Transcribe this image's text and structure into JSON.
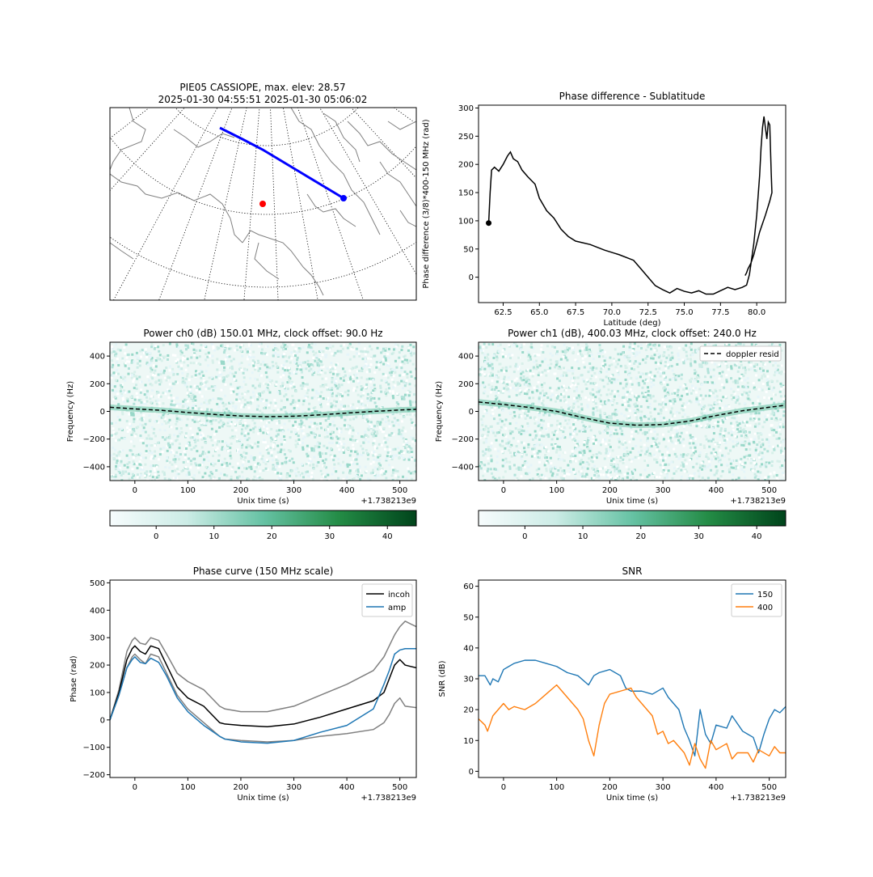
{
  "chart_data": [
    {
      "type": "map",
      "title_line1": "PIE05 CASSIOPE, max. elev: 28.57",
      "title_line2": "2025-01-30 04:55:51 2025-01-30 05:06:02",
      "colors": {
        "track": "#0000ff",
        "station": "#ff0000",
        "coast": "#808080",
        "grid": "#000000"
      }
    },
    {
      "type": "line",
      "title": "Phase difference - Sublatitude",
      "xlabel": "Latitude (deg)",
      "ylabel": "Phase difference (3/8)*400-150 MHz (rad)",
      "xlim": [
        60.8,
        82.0
      ],
      "ylim": [
        -45,
        305
      ],
      "xticks": [
        "62.5",
        "65.0",
        "67.5",
        "70.0",
        "72.5",
        "75.0",
        "77.5",
        "80.0"
      ],
      "yticks": [
        "0",
        "50",
        "100",
        "150",
        "200",
        "250",
        "300"
      ],
      "start_marker": {
        "x": 61.5,
        "y": 96
      },
      "series": [
        {
          "color": "#000000",
          "points": [
            [
              61.5,
              96
            ],
            [
              61.6,
              150
            ],
            [
              61.7,
              190
            ],
            [
              61.9,
              195
            ],
            [
              62.2,
              188
            ],
            [
              62.5,
              200
            ],
            [
              62.8,
              215
            ],
            [
              63.0,
              222
            ],
            [
              63.2,
              210
            ],
            [
              63.5,
              205
            ],
            [
              63.8,
              190
            ],
            [
              64.2,
              178
            ],
            [
              64.7,
              165
            ],
            [
              65.0,
              140
            ],
            [
              65.5,
              118
            ],
            [
              66.0,
              105
            ],
            [
              66.5,
              85
            ],
            [
              67.0,
              72
            ],
            [
              67.5,
              64
            ],
            [
              68.5,
              58
            ],
            [
              69.5,
              48
            ],
            [
              70.5,
              40
            ],
            [
              71.5,
              30
            ],
            [
              72.0,
              15
            ],
            [
              72.5,
              0
            ],
            [
              73.0,
              -15
            ],
            [
              73.5,
              -22
            ],
            [
              74.0,
              -28
            ],
            [
              74.5,
              -20
            ],
            [
              75.0,
              -25
            ],
            [
              75.5,
              -28
            ],
            [
              76.0,
              -24
            ],
            [
              76.5,
              -30
            ],
            [
              77.0,
              -30
            ],
            [
              77.5,
              -24
            ],
            [
              78.0,
              -18
            ],
            [
              78.5,
              -22
            ],
            [
              79.0,
              -18
            ],
            [
              79.3,
              -14
            ],
            [
              79.5,
              5
            ],
            [
              79.8,
              60
            ],
            [
              80.0,
              110
            ],
            [
              80.2,
              180
            ],
            [
              80.3,
              230
            ],
            [
              80.4,
              265
            ],
            [
              80.5,
              285
            ],
            [
              80.6,
              265
            ],
            [
              80.7,
              245
            ],
            [
              80.8,
              275
            ],
            [
              80.9,
              270
            ],
            [
              81.0,
              185
            ],
            [
              81.05,
              150
            ],
            [
              80.9,
              135
            ],
            [
              80.6,
              110
            ],
            [
              80.4,
              95
            ],
            [
              80.2,
              80
            ],
            [
              80.0,
              60
            ],
            [
              79.8,
              40
            ],
            [
              79.6,
              25
            ],
            [
              79.4,
              15
            ],
            [
              79.3,
              8
            ],
            [
              79.2,
              3
            ]
          ]
        }
      ]
    },
    {
      "type": "heatmap",
      "title": "Power ch0 (dB) 150.01 MHz, clock offset: 90.0 Hz",
      "xlabel": "Unix time (s)",
      "ylabel": "Frequency (Hz)",
      "offset_text": "+1.738213e9",
      "xlim": [
        -47,
        531
      ],
      "ylim": [
        -500,
        500
      ],
      "xticks": [
        "0",
        "100",
        "200",
        "300",
        "400",
        "500"
      ],
      "yticks": [
        "400",
        "200",
        "0",
        "−200",
        "−400"
      ],
      "colorbar_ticks": [
        "0",
        "10",
        "20",
        "30",
        "40"
      ],
      "colorbar_range": [
        -8,
        45
      ],
      "doppler_resid": {
        "x": [
          -47,
          0,
          50,
          100,
          150,
          200,
          250,
          300,
          350,
          400,
          450,
          500,
          531
        ],
        "y": [
          30,
          18,
          8,
          -8,
          -22,
          -33,
          -38,
          -35,
          -25,
          -12,
          0,
          10,
          15
        ]
      }
    },
    {
      "type": "heatmap",
      "title": "Power ch1 (dB), 400.03 MHz, clock offset: 240.0 Hz",
      "xlabel": "Unix time (s)",
      "ylabel": "Frequency (Hz)",
      "offset_text": "+1.738213e9",
      "xlim": [
        -47,
        531
      ],
      "ylim": [
        -500,
        500
      ],
      "xticks": [
        "0",
        "100",
        "200",
        "300",
        "400",
        "500"
      ],
      "yticks": [
        "400",
        "200",
        "0",
        "−200",
        "−400"
      ],
      "legend": [
        "doppler resid"
      ],
      "colorbar_ticks": [
        "0",
        "10",
        "20",
        "30",
        "40"
      ],
      "colorbar_range": [
        -8,
        45
      ],
      "doppler_resid": {
        "x": [
          -47,
          0,
          50,
          100,
          150,
          200,
          250,
          300,
          350,
          400,
          450,
          500,
          531
        ],
        "y": [
          68,
          50,
          28,
          0,
          -45,
          -85,
          -100,
          -95,
          -70,
          -30,
          5,
          30,
          45
        ]
      }
    },
    {
      "type": "line",
      "title": "Phase curve (150 MHz scale)",
      "xlabel": "Unix time (s)",
      "ylabel": "Phase (rad)",
      "offset_text": "+1.738213e9",
      "xlim": [
        -47,
        531
      ],
      "ylim": [
        -210,
        510
      ],
      "xticks": [
        "0",
        "100",
        "200",
        "300",
        "400",
        "500"
      ],
      "yticks": [
        "500",
        "400",
        "300",
        "200",
        "100",
        "0",
        "−100",
        "−200"
      ],
      "legend": [
        "incoh",
        "amp"
      ],
      "series": [
        {
          "name": "incoh",
          "color": "#000000",
          "x": [
            -47,
            -30,
            -15,
            -5,
            0,
            10,
            20,
            30,
            45,
            60,
            80,
            100,
            130,
            160,
            170,
            200,
            250,
            300,
            350,
            400,
            450,
            470,
            480,
            490,
            500,
            510,
            531
          ],
          "y": [
            0,
            100,
            220,
            260,
            270,
            250,
            240,
            270,
            260,
            200,
            120,
            80,
            50,
            -10,
            -15,
            -20,
            -25,
            -15,
            10,
            40,
            70,
            100,
            150,
            200,
            220,
            200,
            190
          ]
        },
        {
          "name": "amp",
          "color": "#1f77b4",
          "x": [
            -47,
            -30,
            -15,
            -5,
            0,
            10,
            20,
            30,
            45,
            60,
            80,
            100,
            130,
            160,
            170,
            200,
            250,
            300,
            350,
            400,
            450,
            470,
            480,
            490,
            500,
            510,
            531
          ],
          "y": [
            0,
            90,
            190,
            220,
            230,
            210,
            205,
            225,
            210,
            160,
            80,
            30,
            -20,
            -60,
            -70,
            -80,
            -85,
            -75,
            -45,
            -20,
            40,
            130,
            180,
            240,
            255,
            260,
            260
          ]
        },
        {
          "color": "#808080",
          "x": [
            -47,
            -30,
            -15,
            -5,
            0,
            10,
            20,
            30,
            45,
            60,
            80,
            100,
            130,
            160,
            170,
            200,
            250,
            300,
            350,
            400,
            450,
            470,
            480,
            490,
            500,
            510,
            531
          ],
          "y": [
            0,
            110,
            250,
            290,
            300,
            280,
            275,
            300,
            290,
            240,
            170,
            140,
            110,
            50,
            40,
            30,
            30,
            50,
            90,
            130,
            180,
            230,
            270,
            310,
            340,
            360,
            340
          ]
        },
        {
          "color": "#808080",
          "x": [
            -47,
            -30,
            -15,
            -5,
            0,
            10,
            20,
            30,
            45,
            60,
            80,
            100,
            130,
            160,
            170,
            200,
            250,
            300,
            350,
            400,
            450,
            470,
            480,
            490,
            500,
            510,
            531
          ],
          "y": [
            0,
            90,
            190,
            230,
            240,
            220,
            205,
            240,
            230,
            170,
            90,
            40,
            -10,
            -60,
            -70,
            -75,
            -80,
            -75,
            -60,
            -50,
            -35,
            -10,
            20,
            60,
            80,
            50,
            45
          ]
        }
      ]
    },
    {
      "type": "line",
      "title": "SNR",
      "xlabel": "Unix time (s)",
      "ylabel": "SNR (dB)",
      "offset_text": "+1.738213e9",
      "xlim": [
        -47,
        531
      ],
      "ylim": [
        -2,
        62
      ],
      "xticks": [
        "0",
        "100",
        "200",
        "300",
        "400",
        "500"
      ],
      "yticks": [
        "60",
        "50",
        "40",
        "30",
        "20",
        "10",
        "0"
      ],
      "legend": [
        "150",
        "400"
      ],
      "series": [
        {
          "name": "150",
          "color": "#1f77b4",
          "x": [
            -47,
            -35,
            -25,
            -20,
            -10,
            0,
            10,
            20,
            40,
            60,
            80,
            100,
            120,
            140,
            160,
            170,
            180,
            200,
            220,
            230,
            240,
            260,
            280,
            300,
            310,
            330,
            340,
            350,
            360,
            370,
            380,
            390,
            400,
            420,
            430,
            450,
            460,
            470,
            480,
            490,
            500,
            510,
            520,
            531
          ],
          "y": [
            31,
            31,
            28,
            30,
            29,
            33,
            34,
            35,
            36,
            36,
            35,
            34,
            32,
            31,
            28,
            31,
            32,
            33,
            31,
            27,
            26,
            26,
            25,
            27,
            24,
            20,
            14,
            10,
            5,
            20,
            12,
            9,
            15,
            14,
            18,
            13,
            12,
            11,
            6,
            12,
            17,
            20,
            19,
            21
          ]
        },
        {
          "name": "400",
          "color": "#ff7f0e",
          "x": [
            -47,
            -35,
            -30,
            -20,
            -10,
            0,
            10,
            20,
            40,
            60,
            80,
            100,
            120,
            140,
            150,
            160,
            170,
            180,
            190,
            200,
            220,
            240,
            250,
            260,
            270,
            280,
            290,
            300,
            310,
            320,
            330,
            340,
            350,
            360,
            370,
            380,
            390,
            400,
            420,
            430,
            440,
            460,
            470,
            480,
            500,
            510,
            520,
            531
          ],
          "y": [
            17,
            15,
            13,
            18,
            20,
            22,
            20,
            21,
            20,
            22,
            25,
            28,
            24,
            20,
            17,
            10,
            5,
            15,
            22,
            25,
            26,
            27,
            24,
            22,
            20,
            18,
            12,
            13,
            9,
            10,
            8,
            6,
            2,
            9,
            4,
            1,
            10,
            7,
            9,
            4,
            6,
            6,
            3,
            7,
            5,
            8,
            6,
            6
          ]
        }
      ]
    }
  ]
}
